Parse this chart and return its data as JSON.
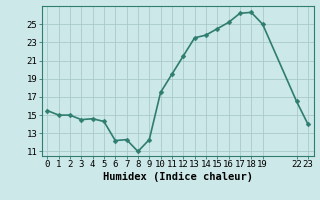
{
  "x": [
    0,
    1,
    2,
    3,
    4,
    5,
    6,
    7,
    8,
    9,
    10,
    11,
    12,
    13,
    14,
    15,
    16,
    17,
    18,
    19,
    22,
    23
  ],
  "y": [
    15.5,
    15.0,
    15.0,
    14.5,
    14.6,
    14.3,
    12.2,
    12.3,
    11.0,
    12.3,
    17.5,
    19.5,
    21.5,
    23.5,
    23.8,
    24.5,
    25.2,
    26.2,
    26.3,
    25.0,
    16.5,
    14.0
  ],
  "line_color": "#2e7d6e",
  "marker": "D",
  "marker_size": 2.5,
  "linewidth": 1.2,
  "bg_color": "#cce8e8",
  "grid_color": "#aacaca",
  "xlabel": "Humidex (Indice chaleur)",
  "xlim": [
    -0.5,
    23.5
  ],
  "ylim": [
    10.5,
    27.0
  ],
  "xticks": [
    0,
    1,
    2,
    3,
    4,
    5,
    6,
    7,
    8,
    9,
    10,
    11,
    12,
    13,
    14,
    15,
    16,
    17,
    18,
    19,
    22,
    23
  ],
  "yticks": [
    11,
    13,
    15,
    17,
    19,
    21,
    23,
    25
  ],
  "tick_fontsize": 6.5,
  "xlabel_fontsize": 7.5,
  "axis_color": "#2e7d6e"
}
